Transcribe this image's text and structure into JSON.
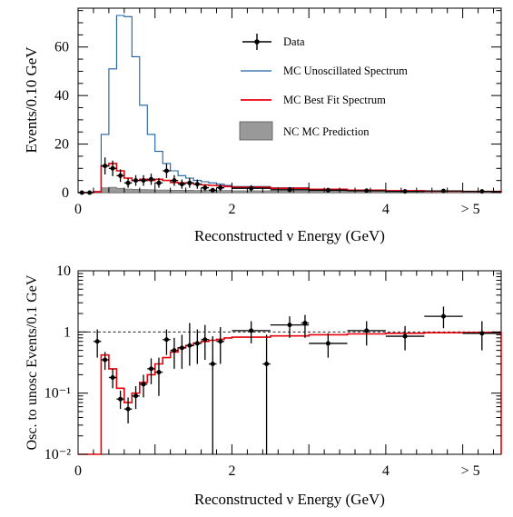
{
  "chart_data": [
    {
      "type": "histogram",
      "xlabel": "Reconstructed ν Energy (GeV)",
      "ylabel": "Events/0.10 GeV",
      "xlim": [
        0,
        5.5
      ],
      "ylim": [
        0,
        76
      ],
      "xticks": [
        0,
        2,
        4
      ],
      "xtick_last_label": "> 5",
      "yticks": [
        0,
        20,
        40,
        60
      ],
      "legend_position": "top-right",
      "legend": {
        "data": "Data",
        "unosc": "MC Unoscillated Spectrum",
        "bestfit": "MC Best Fit Spectrum",
        "nc": "NC MC Prediction"
      },
      "colors": {
        "unosc": "#1f5fa0",
        "bestfit": "#e8000b",
        "nc": "#999999",
        "data": "#000000"
      },
      "series": [
        {
          "key": "unosc",
          "edges": [
            0,
            0.1,
            0.2,
            0.3,
            0.4,
            0.5,
            0.6,
            0.7,
            0.8,
            0.9,
            1.0,
            1.1,
            1.2,
            1.3,
            1.4,
            1.5,
            1.6,
            1.7,
            1.8,
            1.9,
            2.0,
            2.5,
            3.0,
            3.5,
            4.0,
            4.5,
            5.0,
            5.5
          ],
          "values": [
            0,
            0,
            0.5,
            24,
            51,
            73,
            72.5,
            56,
            36,
            24,
            17,
            12,
            9,
            7,
            6,
            5,
            4.5,
            4,
            3.5,
            3,
            2.5,
            2,
            1.5,
            1,
            0.8,
            0.6,
            0.5
          ]
        },
        {
          "key": "bestfit",
          "edges": [
            0,
            0.1,
            0.2,
            0.3,
            0.4,
            0.5,
            0.6,
            0.7,
            0.8,
            0.9,
            1.0,
            1.1,
            1.2,
            1.3,
            1.4,
            1.5,
            1.6,
            1.7,
            1.8,
            1.9,
            2.0,
            2.5,
            3.0,
            3.5,
            4.0,
            4.5,
            5.0,
            5.5
          ],
          "values": [
            0,
            0,
            0.3,
            11,
            12,
            9,
            6,
            5,
            5.5,
            5,
            5.5,
            5,
            4.2,
            4,
            4,
            3.5,
            3.2,
            3,
            2.8,
            2.5,
            2.2,
            1.8,
            1.4,
            1,
            0.8,
            0.6,
            0.5
          ]
        },
        {
          "key": "nc",
          "edges": [
            0.2,
            0.3,
            0.4,
            0.5,
            0.6,
            0.7,
            0.8,
            0.9,
            1.0,
            1.2,
            1.5,
            2.0,
            2.5,
            3.0,
            4.0,
            5.0,
            5.5
          ],
          "values": [
            0.5,
            2,
            2.2,
            1.8,
            1.5,
            1.4,
            1.3,
            1.2,
            1.1,
            1,
            0.9,
            0.8,
            0.7,
            0.6,
            0.6,
            0.5
          ]
        }
      ],
      "data_points": [
        {
          "x": 0.05,
          "y": 0,
          "xerr": 0.05,
          "yerr": 0
        },
        {
          "x": 0.15,
          "y": 0,
          "xerr": 0.05,
          "yerr": 0
        },
        {
          "x": 0.35,
          "y": 11,
          "xerr": 0.05,
          "yerr": 3.5
        },
        {
          "x": 0.45,
          "y": 10,
          "xerr": 0.05,
          "yerr": 3.2
        },
        {
          "x": 0.55,
          "y": 7,
          "xerr": 0.05,
          "yerr": 2.6
        },
        {
          "x": 0.65,
          "y": 4,
          "xerr": 0.05,
          "yerr": 2
        },
        {
          "x": 0.75,
          "y": 5,
          "xerr": 0.05,
          "yerr": 2.2
        },
        {
          "x": 0.85,
          "y": 5,
          "xerr": 0.05,
          "yerr": 2.2
        },
        {
          "x": 0.95,
          "y": 5.5,
          "xerr": 0.05,
          "yerr": 2.3
        },
        {
          "x": 1.05,
          "y": 4,
          "xerr": 0.05,
          "yerr": 2
        },
        {
          "x": 1.15,
          "y": 9,
          "xerr": 0.05,
          "yerr": 3
        },
        {
          "x": 1.25,
          "y": 5,
          "xerr": 0.05,
          "yerr": 2.2
        },
        {
          "x": 1.35,
          "y": 3.5,
          "xerr": 0.05,
          "yerr": 1.9
        },
        {
          "x": 1.45,
          "y": 4,
          "xerr": 0.05,
          "yerr": 2
        },
        {
          "x": 1.55,
          "y": 3.5,
          "xerr": 0.05,
          "yerr": 1.9
        },
        {
          "x": 1.65,
          "y": 2,
          "xerr": 0.05,
          "yerr": 1.4
        },
        {
          "x": 1.75,
          "y": 1,
          "xerr": 0.05,
          "yerr": 1
        },
        {
          "x": 1.85,
          "y": 2,
          "xerr": 0.05,
          "yerr": 1.4
        },
        {
          "x": 2.25,
          "y": 1.8,
          "xerr": 0.25,
          "yerr": 1.3
        },
        {
          "x": 2.75,
          "y": 1.2,
          "xerr": 0.25,
          "yerr": 1.1
        },
        {
          "x": 3.25,
          "y": 1,
          "xerr": 0.25,
          "yerr": 1
        },
        {
          "x": 3.75,
          "y": 0.8,
          "xerr": 0.25,
          "yerr": 0.9
        },
        {
          "x": 4.25,
          "y": 0.5,
          "xerr": 0.25,
          "yerr": 0.7
        },
        {
          "x": 4.75,
          "y": 0.7,
          "xerr": 0.25,
          "yerr": 0.8
        },
        {
          "x": 5.25,
          "y": 0.5,
          "xerr": 0.25,
          "yerr": 0.7
        }
      ]
    },
    {
      "type": "histogram",
      "xlabel": "Reconstructed ν Energy (GeV)",
      "ylabel": "Osc. to unosc Events/0.1 GeV",
      "yscale": "log",
      "xlim": [
        0,
        5.5
      ],
      "ylim": [
        0.01,
        10
      ],
      "xticks": [
        0,
        2,
        4
      ],
      "xtick_last_label": "> 5",
      "yticks": [
        0.01,
        0.1,
        1,
        10
      ],
      "ytick_labels": {
        "0.01": "10⁻²",
        "0.1": "10⁻¹",
        "1": "1",
        "10": "10"
      },
      "reference_line": 1,
      "colors": {
        "bestfit": "#e8000b",
        "data": "#000000"
      },
      "series": [
        {
          "key": "bestfit",
          "edges": [
            0,
            0.1,
            0.2,
            0.3,
            0.4,
            0.5,
            0.6,
            0.7,
            0.8,
            0.9,
            1.0,
            1.1,
            1.2,
            1.3,
            1.4,
            1.5,
            1.6,
            1.7,
            1.8,
            1.9,
            2.0,
            2.5,
            3.0,
            3.5,
            4.0,
            4.5,
            5.0,
            5.5
          ],
          "values": [
            0.01,
            0.01,
            0.01,
            0.42,
            0.25,
            0.12,
            0.07,
            0.1,
            0.15,
            0.2,
            0.3,
            0.38,
            0.47,
            0.55,
            0.6,
            0.66,
            0.7,
            0.73,
            0.76,
            0.8,
            0.82,
            0.86,
            0.9,
            0.93,
            0.95,
            0.97,
            0.98
          ]
        }
      ],
      "data_points": [
        {
          "x": 0.25,
          "y": 0.7,
          "xerr": 0.05,
          "ylo": 0.38,
          "yhi": 1.1
        },
        {
          "x": 0.35,
          "y": 0.35,
          "xerr": 0.05,
          "ylo": 0.24,
          "yhi": 0.47
        },
        {
          "x": 0.45,
          "y": 0.18,
          "xerr": 0.05,
          "ylo": 0.12,
          "yhi": 0.25
        },
        {
          "x": 0.55,
          "y": 0.08,
          "xerr": 0.05,
          "ylo": 0.055,
          "yhi": 0.11
        },
        {
          "x": 0.65,
          "y": 0.055,
          "xerr": 0.05,
          "ylo": 0.032,
          "yhi": 0.085
        },
        {
          "x": 0.75,
          "y": 0.09,
          "xerr": 0.05,
          "ylo": 0.055,
          "yhi": 0.13
        },
        {
          "x": 0.85,
          "y": 0.14,
          "xerr": 0.05,
          "ylo": 0.085,
          "yhi": 0.2
        },
        {
          "x": 0.95,
          "y": 0.25,
          "xerr": 0.05,
          "ylo": 0.14,
          "yhi": 0.37
        },
        {
          "x": 1.05,
          "y": 0.22,
          "xerr": 0.05,
          "ylo": 0.09,
          "yhi": 0.38
        },
        {
          "x": 1.15,
          "y": 0.75,
          "xerr": 0.05,
          "ylo": 0.42,
          "yhi": 1.1
        },
        {
          "x": 1.25,
          "y": 0.5,
          "xerr": 0.05,
          "ylo": 0.25,
          "yhi": 0.8
        },
        {
          "x": 1.35,
          "y": 0.55,
          "xerr": 0.05,
          "ylo": 0.25,
          "yhi": 0.9
        },
        {
          "x": 1.45,
          "y": 0.6,
          "xerr": 0.05,
          "ylo": 0.28,
          "yhi": 1.4
        },
        {
          "x": 1.55,
          "y": 0.65,
          "xerr": 0.05,
          "ylo": 0.3,
          "yhi": 1.1
        },
        {
          "x": 1.65,
          "y": 0.75,
          "xerr": 0.05,
          "ylo": 0.35,
          "yhi": 1.3
        },
        {
          "x": 1.75,
          "y": 0.3,
          "xerr": 0.05,
          "ylo": 0.01,
          "yhi": 0.85
        },
        {
          "x": 1.85,
          "y": 0.7,
          "xerr": 0.05,
          "ylo": 0.3,
          "yhi": 1.2
        },
        {
          "x": 2.25,
          "y": 1.05,
          "xerr": 0.25,
          "ylo": 0.65,
          "yhi": 1.5
        },
        {
          "x": 2.45,
          "y": 0.3,
          "xerr": 0.05,
          "ylo": 0.01,
          "yhi": 0.9
        },
        {
          "x": 2.75,
          "y": 1.3,
          "xerr": 0.25,
          "ylo": 0.8,
          "yhi": 1.8
        },
        {
          "x": 2.95,
          "y": 1.4,
          "xerr": 0.05,
          "ylo": 0.8,
          "yhi": 1.9
        },
        {
          "x": 3.25,
          "y": 0.65,
          "xerr": 0.25,
          "ylo": 0.38,
          "yhi": 0.95
        },
        {
          "x": 3.75,
          "y": 1.05,
          "xerr": 0.25,
          "ylo": 0.6,
          "yhi": 1.5
        },
        {
          "x": 4.25,
          "y": 0.85,
          "xerr": 0.25,
          "ylo": 0.5,
          "yhi": 1.25
        },
        {
          "x": 4.75,
          "y": 1.8,
          "xerr": 0.25,
          "ylo": 1.15,
          "yhi": 2.6
        },
        {
          "x": 5.25,
          "y": 0.95,
          "xerr": 0.25,
          "ylo": 0.5,
          "yhi": 1.5
        }
      ]
    }
  ]
}
